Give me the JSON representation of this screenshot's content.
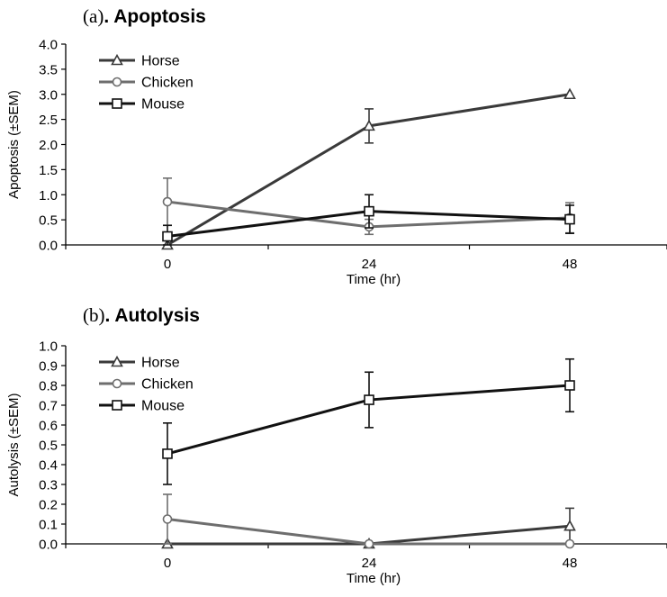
{
  "chart_data": [
    {
      "panel": "(a)",
      "title": "Apoptosis",
      "type": "line",
      "xlabel": "Time (hr)",
      "ylabel": "Apoptosis (±SEM)",
      "ylim": [
        0,
        4.0
      ],
      "yticks": [
        "0.0",
        "0.5",
        "1.0",
        "1.5",
        "2.0",
        "2.5",
        "3.0",
        "3.5",
        "4.0"
      ],
      "x": [
        "0",
        "24",
        "48"
      ],
      "legend": "top-left",
      "series": [
        {
          "name": "Horse",
          "marker": "triangle",
          "color": "#3a3a3a",
          "values": [
            0.0,
            2.37,
            3.0
          ],
          "err": [
            0,
            0.34,
            0
          ]
        },
        {
          "name": "Chicken",
          "marker": "circle",
          "color": "#6e6e6e",
          "values": [
            0.86,
            0.36,
            0.54
          ],
          "err": [
            0.47,
            0.15,
            0.3
          ]
        },
        {
          "name": "Mouse",
          "marker": "square",
          "color": "#111111",
          "values": [
            0.17,
            0.67,
            0.51
          ],
          "err": [
            0.22,
            0.33,
            0.28
          ]
        }
      ]
    },
    {
      "panel": "(b)",
      "title": "Autolysis",
      "type": "line",
      "xlabel": "Time (hr)",
      "ylabel": "Autolysis (±SEM)",
      "ylim": [
        0,
        1.0
      ],
      "yticks": [
        "0.0",
        "0.1",
        "0.2",
        "0.3",
        "0.4",
        "0.5",
        "0.6",
        "0.7",
        "0.8",
        "0.9",
        "1.0"
      ],
      "x": [
        "0",
        "24",
        "48"
      ],
      "legend": "top-left",
      "series": [
        {
          "name": "Horse",
          "marker": "triangle",
          "color": "#3a3a3a",
          "values": [
            0.0,
            0.0,
            0.09
          ],
          "err": [
            0,
            0,
            0.09
          ]
        },
        {
          "name": "Chicken",
          "marker": "circle",
          "color": "#6e6e6e",
          "values": [
            0.125,
            0.0,
            0.0
          ],
          "err": [
            0.125,
            0,
            0
          ]
        },
        {
          "name": "Mouse",
          "marker": "square",
          "color": "#111111",
          "values": [
            0.455,
            0.727,
            0.8
          ],
          "err": [
            0.155,
            0.14,
            0.133
          ]
        }
      ]
    }
  ]
}
